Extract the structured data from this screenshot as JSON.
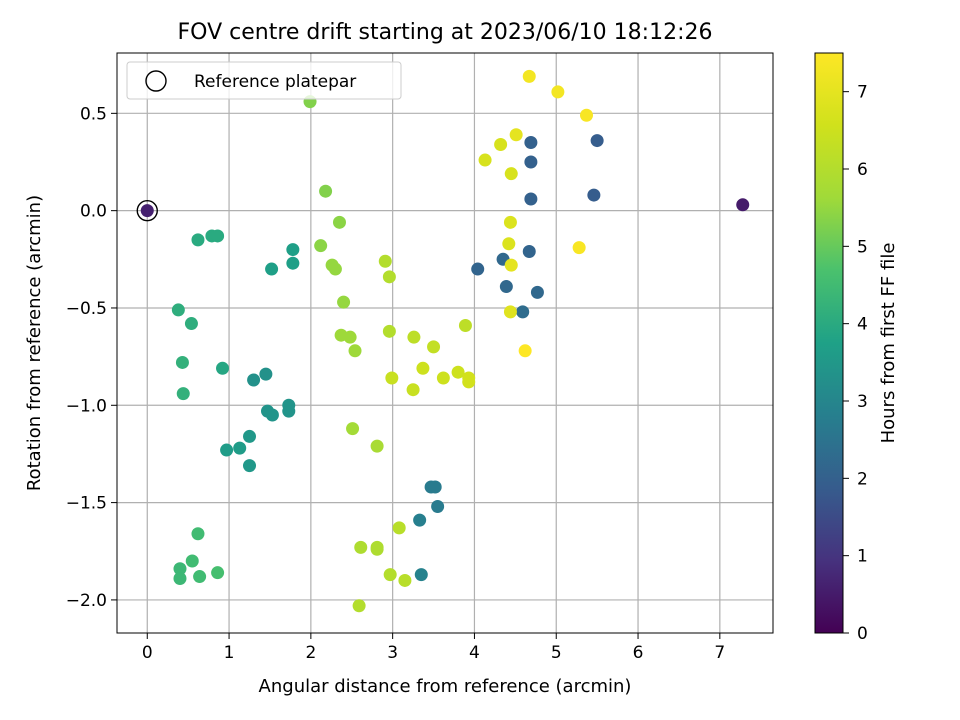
{
  "chart_data": {
    "type": "scatter",
    "title": "FOV centre drift starting at 2023/06/10 18:12:26",
    "xlabel": "Angular distance from reference (arcmin)",
    "ylabel": "Rotation from reference (arcmin)",
    "xlim": [
      -0.37,
      7.65
    ],
    "ylim": [
      -2.17,
      0.81
    ],
    "xticks": [
      0,
      1,
      2,
      3,
      4,
      5,
      6,
      7
    ],
    "xtick_labels": [
      "0",
      "1",
      "2",
      "3",
      "4",
      "5",
      "6",
      "7"
    ],
    "yticks": [
      0.5,
      0.0,
      -0.5,
      -1.0,
      -1.5,
      -2.0
    ],
    "ytick_labels": [
      "0.5",
      "0.0",
      "−0.5",
      "−1.0",
      "−1.5",
      "−2.0"
    ],
    "grid": true,
    "legend": {
      "placement": "top-left",
      "entries": [
        "Reference platepar"
      ]
    },
    "reference_point": {
      "x": 0.0,
      "y": 0.0,
      "label": "Reference platepar"
    },
    "colorbar": {
      "label": "Hours from first FF file",
      "colormap": "viridis",
      "range": [
        0,
        7.5
      ],
      "ticks": [
        0,
        1,
        2,
        3,
        4,
        5,
        6,
        7
      ],
      "tick_labels": [
        "0",
        "1",
        "2",
        "3",
        "4",
        "5",
        "6",
        "7"
      ]
    },
    "points": [
      {
        "x": 0.0,
        "y": 0.0,
        "hours": 0.6
      },
      {
        "x": 7.28,
        "y": 0.03,
        "hours": 0.5
      },
      {
        "x": 5.5,
        "y": 0.36,
        "hours": 1.9
      },
      {
        "x": 5.46,
        "y": 0.08,
        "hours": 1.9
      },
      {
        "x": 4.69,
        "y": 0.35,
        "hours": 2.0
      },
      {
        "x": 4.69,
        "y": 0.25,
        "hours": 2.0
      },
      {
        "x": 4.69,
        "y": 0.06,
        "hours": 2.0
      },
      {
        "x": 4.67,
        "y": -0.21,
        "hours": 2.1
      },
      {
        "x": 4.04,
        "y": -0.3,
        "hours": 2.1
      },
      {
        "x": 4.35,
        "y": -0.25,
        "hours": 2.2
      },
      {
        "x": 4.39,
        "y": -0.39,
        "hours": 2.2
      },
      {
        "x": 4.77,
        "y": -0.42,
        "hours": 2.2
      },
      {
        "x": 4.59,
        "y": -0.52,
        "hours": 2.3
      },
      {
        "x": 3.47,
        "y": -1.42,
        "hours": 2.7
      },
      {
        "x": 3.52,
        "y": -1.42,
        "hours": 2.7
      },
      {
        "x": 3.55,
        "y": -1.52,
        "hours": 2.7
      },
      {
        "x": 3.33,
        "y": -1.59,
        "hours": 2.8
      },
      {
        "x": 3.35,
        "y": -1.87,
        "hours": 2.9
      },
      {
        "x": 1.3,
        "y": -0.87,
        "hours": 3.3
      },
      {
        "x": 1.45,
        "y": -0.84,
        "hours": 3.3
      },
      {
        "x": 1.47,
        "y": -1.03,
        "hours": 3.4
      },
      {
        "x": 1.53,
        "y": -1.05,
        "hours": 3.4
      },
      {
        "x": 1.73,
        "y": -1.0,
        "hours": 3.4
      },
      {
        "x": 1.73,
        "y": -1.03,
        "hours": 3.4
      },
      {
        "x": 1.25,
        "y": -1.16,
        "hours": 3.5
      },
      {
        "x": 1.25,
        "y": -1.31,
        "hours": 3.5
      },
      {
        "x": 1.13,
        "y": -1.22,
        "hours": 3.6
      },
      {
        "x": 0.97,
        "y": -1.23,
        "hours": 3.6
      },
      {
        "x": 1.52,
        "y": -0.3,
        "hours": 3.7
      },
      {
        "x": 1.78,
        "y": -0.2,
        "hours": 3.7
      },
      {
        "x": 1.78,
        "y": -0.27,
        "hours": 3.7
      },
      {
        "x": 0.92,
        "y": -0.81,
        "hours": 3.9
      },
      {
        "x": 0.62,
        "y": -0.15,
        "hours": 4.0
      },
      {
        "x": 0.79,
        "y": -0.13,
        "hours": 4.0
      },
      {
        "x": 0.86,
        "y": -0.13,
        "hours": 4.0
      },
      {
        "x": 0.38,
        "y": -0.51,
        "hours": 4.1
      },
      {
        "x": 0.54,
        "y": -0.58,
        "hours": 4.1
      },
      {
        "x": 0.43,
        "y": -0.78,
        "hours": 4.2
      },
      {
        "x": 0.44,
        "y": -0.94,
        "hours": 4.2
      },
      {
        "x": 0.4,
        "y": -1.84,
        "hours": 4.4
      },
      {
        "x": 0.4,
        "y": -1.89,
        "hours": 4.4
      },
      {
        "x": 0.55,
        "y": -1.8,
        "hours": 4.5
      },
      {
        "x": 0.62,
        "y": -1.66,
        "hours": 4.5
      },
      {
        "x": 0.64,
        "y": -1.88,
        "hours": 4.5
      },
      {
        "x": 0.86,
        "y": -1.86,
        "hours": 4.6
      },
      {
        "x": 1.99,
        "y": 0.56,
        "hours": 5.3
      },
      {
        "x": 2.18,
        "y": 0.1,
        "hours": 5.3
      },
      {
        "x": 2.35,
        "y": -0.06,
        "hours": 5.4
      },
      {
        "x": 2.12,
        "y": -0.18,
        "hours": 5.4
      },
      {
        "x": 2.26,
        "y": -0.28,
        "hours": 5.5
      },
      {
        "x": 2.3,
        "y": -0.3,
        "hours": 5.5
      },
      {
        "x": 2.4,
        "y": -0.47,
        "hours": 5.5
      },
      {
        "x": 2.37,
        "y": -0.64,
        "hours": 5.6
      },
      {
        "x": 2.48,
        "y": -0.65,
        "hours": 5.6
      },
      {
        "x": 2.54,
        "y": -0.72,
        "hours": 5.6
      },
      {
        "x": 2.51,
        "y": -1.12,
        "hours": 5.7
      },
      {
        "x": 2.81,
        "y": -1.21,
        "hours": 5.8
      },
      {
        "x": 2.61,
        "y": -1.73,
        "hours": 5.9
      },
      {
        "x": 2.81,
        "y": -1.73,
        "hours": 5.9
      },
      {
        "x": 2.81,
        "y": -1.74,
        "hours": 5.9
      },
      {
        "x": 2.59,
        "y": -2.03,
        "hours": 6.0
      },
      {
        "x": 2.97,
        "y": -1.87,
        "hours": 6.0
      },
      {
        "x": 3.15,
        "y": -1.9,
        "hours": 6.1
      },
      {
        "x": 3.08,
        "y": -1.63,
        "hours": 6.1
      },
      {
        "x": 2.91,
        "y": -0.26,
        "hours": 6.0
      },
      {
        "x": 2.96,
        "y": -0.34,
        "hours": 6.0
      },
      {
        "x": 2.96,
        "y": -0.62,
        "hours": 6.0
      },
      {
        "x": 3.26,
        "y": -0.65,
        "hours": 6.2
      },
      {
        "x": 3.5,
        "y": -0.7,
        "hours": 6.3
      },
      {
        "x": 3.89,
        "y": -0.59,
        "hours": 6.2
      },
      {
        "x": 2.99,
        "y": -0.86,
        "hours": 6.4
      },
      {
        "x": 3.25,
        "y": -0.92,
        "hours": 6.4
      },
      {
        "x": 3.37,
        "y": -0.81,
        "hours": 6.5
      },
      {
        "x": 3.62,
        "y": -0.86,
        "hours": 6.5
      },
      {
        "x": 3.8,
        "y": -0.83,
        "hours": 6.5
      },
      {
        "x": 3.93,
        "y": -0.86,
        "hours": 6.6
      },
      {
        "x": 3.93,
        "y": -0.88,
        "hours": 6.6
      },
      {
        "x": 4.13,
        "y": 0.26,
        "hours": 6.7
      },
      {
        "x": 4.32,
        "y": 0.34,
        "hours": 6.7
      },
      {
        "x": 4.45,
        "y": 0.19,
        "hours": 6.7
      },
      {
        "x": 4.44,
        "y": -0.06,
        "hours": 6.8
      },
      {
        "x": 4.42,
        "y": -0.17,
        "hours": 6.8
      },
      {
        "x": 4.44,
        "y": -0.52,
        "hours": 6.9
      },
      {
        "x": 4.51,
        "y": 0.39,
        "hours": 7.0
      },
      {
        "x": 4.45,
        "y": -0.28,
        "hours": 7.0
      },
      {
        "x": 4.67,
        "y": 0.69,
        "hours": 7.3
      },
      {
        "x": 5.02,
        "y": 0.61,
        "hours": 7.3
      },
      {
        "x": 5.37,
        "y": 0.49,
        "hours": 7.4
      },
      {
        "x": 5.28,
        "y": -0.19,
        "hours": 7.4
      },
      {
        "x": 4.62,
        "y": -0.72,
        "hours": 7.5
      }
    ]
  }
}
